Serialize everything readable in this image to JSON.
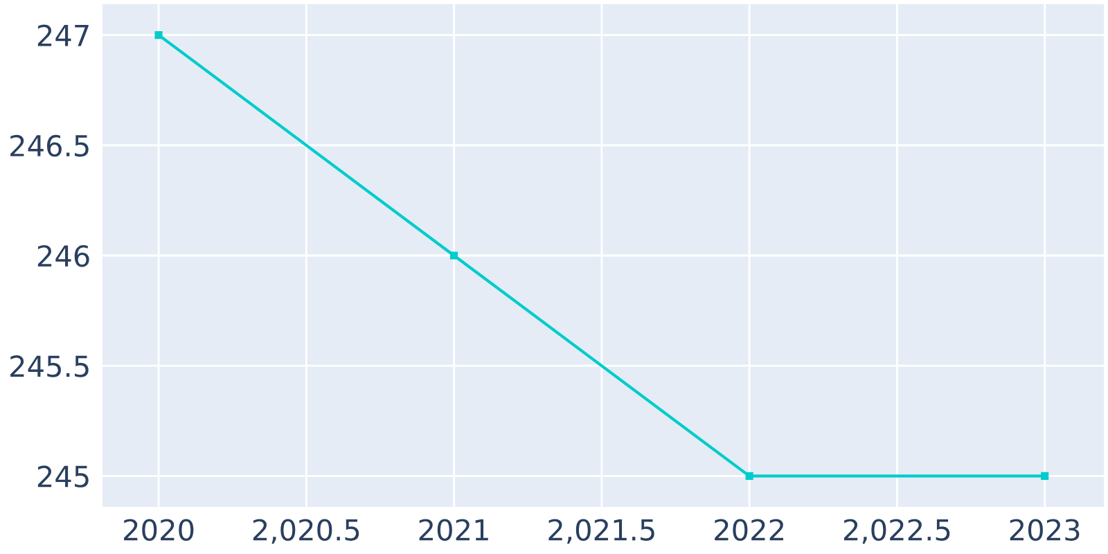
{
  "chart_data": {
    "type": "line",
    "x": [
      2020,
      2021,
      2022,
      2023
    ],
    "series": [
      {
        "color": "#00cccc",
        "values": [
          247,
          246,
          245,
          245
        ]
      }
    ],
    "xlim": [
      2019.81,
      2023.2
    ],
    "ylim": [
      244.86,
      247.14
    ],
    "xticks": [
      2020,
      {
        "value": 2020.5,
        "label": "2,020.5"
      },
      2021,
      {
        "value": 2021.5,
        "label": "2,021.5"
      },
      2022,
      {
        "value": 2022.5,
        "label": "2,022.5"
      },
      2023
    ],
    "yticks": [
      245,
      245.5,
      246,
      246.5,
      247
    ],
    "grid": true,
    "marker": "square",
    "line_style": "solid"
  }
}
